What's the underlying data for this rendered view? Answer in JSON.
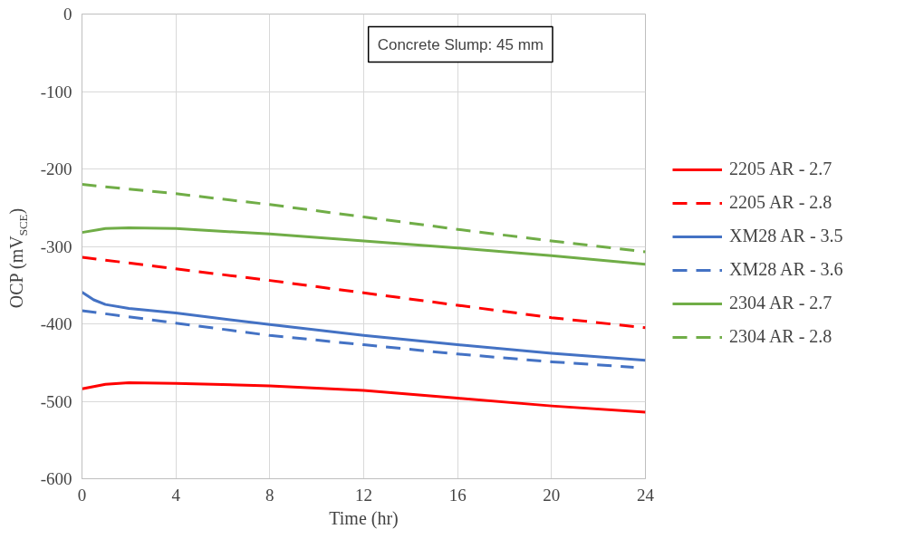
{
  "chart_data": {
    "type": "line",
    "xlabel": "Time (hr)",
    "ylabel": "OCP (mV$_{SCE}$)",
    "xlim": [
      0,
      24
    ],
    "xticks": [
      0,
      4,
      8,
      12,
      16,
      20,
      24
    ],
    "ylim": [
      -600,
      0
    ],
    "yticks": [
      -600,
      -500,
      -400,
      -300,
      -200,
      -100,
      0
    ],
    "grid": true,
    "legend": "right",
    "annotations": [
      "Concrete Slump: 45 mm"
    ],
    "series": [
      {
        "name": "2205 AR - 2.7",
        "color": "#ff0000",
        "line_style": "solid",
        "x": [
          0,
          1,
          2,
          4,
          8,
          12,
          16,
          20,
          24
        ],
        "values": [
          -484,
          -478,
          -476,
          -477,
          -480,
          -486,
          -496,
          -506,
          -514
        ]
      },
      {
        "name": "2205 AR - 2.8",
        "color": "#ff0000",
        "line_style": "dashed",
        "x": [
          0,
          4,
          8,
          12,
          16,
          20,
          24
        ],
        "values": [
          -314,
          -329,
          -344,
          -360,
          -376,
          -392,
          -405
        ]
      },
      {
        "name": "XM28 AR - 3.5",
        "color": "#4472c4",
        "line_style": "solid",
        "x": [
          0,
          0.5,
          1,
          2,
          4,
          8,
          12,
          16,
          20,
          24
        ],
        "values": [
          -359,
          -369,
          -375,
          -380,
          -386,
          -401,
          -415,
          -427,
          -438,
          -447
        ]
      },
      {
        "name": "XM28 AR - 3.6",
        "color": "#4472c4",
        "line_style": "dashed",
        "x": [
          0,
          4,
          8,
          12,
          16,
          20,
          23.5
        ],
        "values": [
          -383,
          -399,
          -415,
          -427,
          -439,
          -449,
          -456
        ]
      },
      {
        "name": "2304 AR - 2.7",
        "color": "#70ad47",
        "line_style": "solid",
        "x": [
          0,
          1,
          2,
          4,
          8,
          12,
          16,
          20,
          24
        ],
        "values": [
          -282,
          -277,
          -276,
          -277,
          -284,
          -293,
          -302,
          -312,
          -323
        ]
      },
      {
        "name": "2304 AR - 2.8",
        "color": "#70ad47",
        "line_style": "dashed",
        "x": [
          0,
          4,
          8,
          12,
          16,
          20,
          24
        ],
        "values": [
          -220,
          -232,
          -246,
          -262,
          -278,
          -293,
          -307
        ]
      }
    ]
  }
}
